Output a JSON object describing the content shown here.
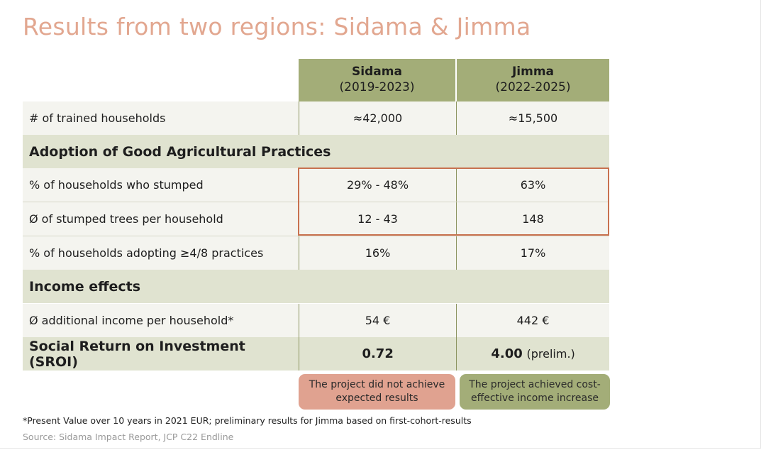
{
  "title": "Results from two regions: Sidama & Jimma",
  "columns": [
    {
      "name": "Sidama",
      "period": "(2019-2023)"
    },
    {
      "name": "Jimma",
      "period": "(2022-2025)"
    }
  ],
  "rows": {
    "trained": {
      "label": "# of trained households",
      "sidama": "≈42,000",
      "jimma": "≈15,500"
    },
    "section_gap": "Adoption of Good Agricultural Practices",
    "stumped": {
      "label": "% of households who stumped",
      "sidama": "29% - 48%",
      "jimma": "63%"
    },
    "trees": {
      "label": "Ø of stumped trees per household",
      "sidama": "12 - 43",
      "jimma": "148"
    },
    "adopting": {
      "label": "% of households adopting ≥4/8 practices",
      "sidama": "16%",
      "jimma": "17%"
    },
    "section_income": "Income effects",
    "income": {
      "label": "Ø additional income per household*",
      "sidama": "54 €",
      "jimma": "442 €"
    },
    "sroi": {
      "label": "Social Return on Investment (SROI)",
      "sidama": "0.72",
      "jimma": "4.00",
      "jimma_note": "(prelim.)"
    }
  },
  "badges": {
    "sidama": "The project did not achieve expected results",
    "jimma": "The project achieved cost-effective income increase"
  },
  "footnote": "*Present Value over 10 years in 2021 EUR; preliminary results for Jimma based on first-cohort-results",
  "source": "Source: Sidama Impact Report, JCP C22 Endline",
  "colors": {
    "title": "#e2a790",
    "header": "#a3ad78",
    "section": "#e0e3d0",
    "highlight": "#c8714f",
    "badge_red": "#e0a290",
    "badge_green": "#a3ad78"
  }
}
